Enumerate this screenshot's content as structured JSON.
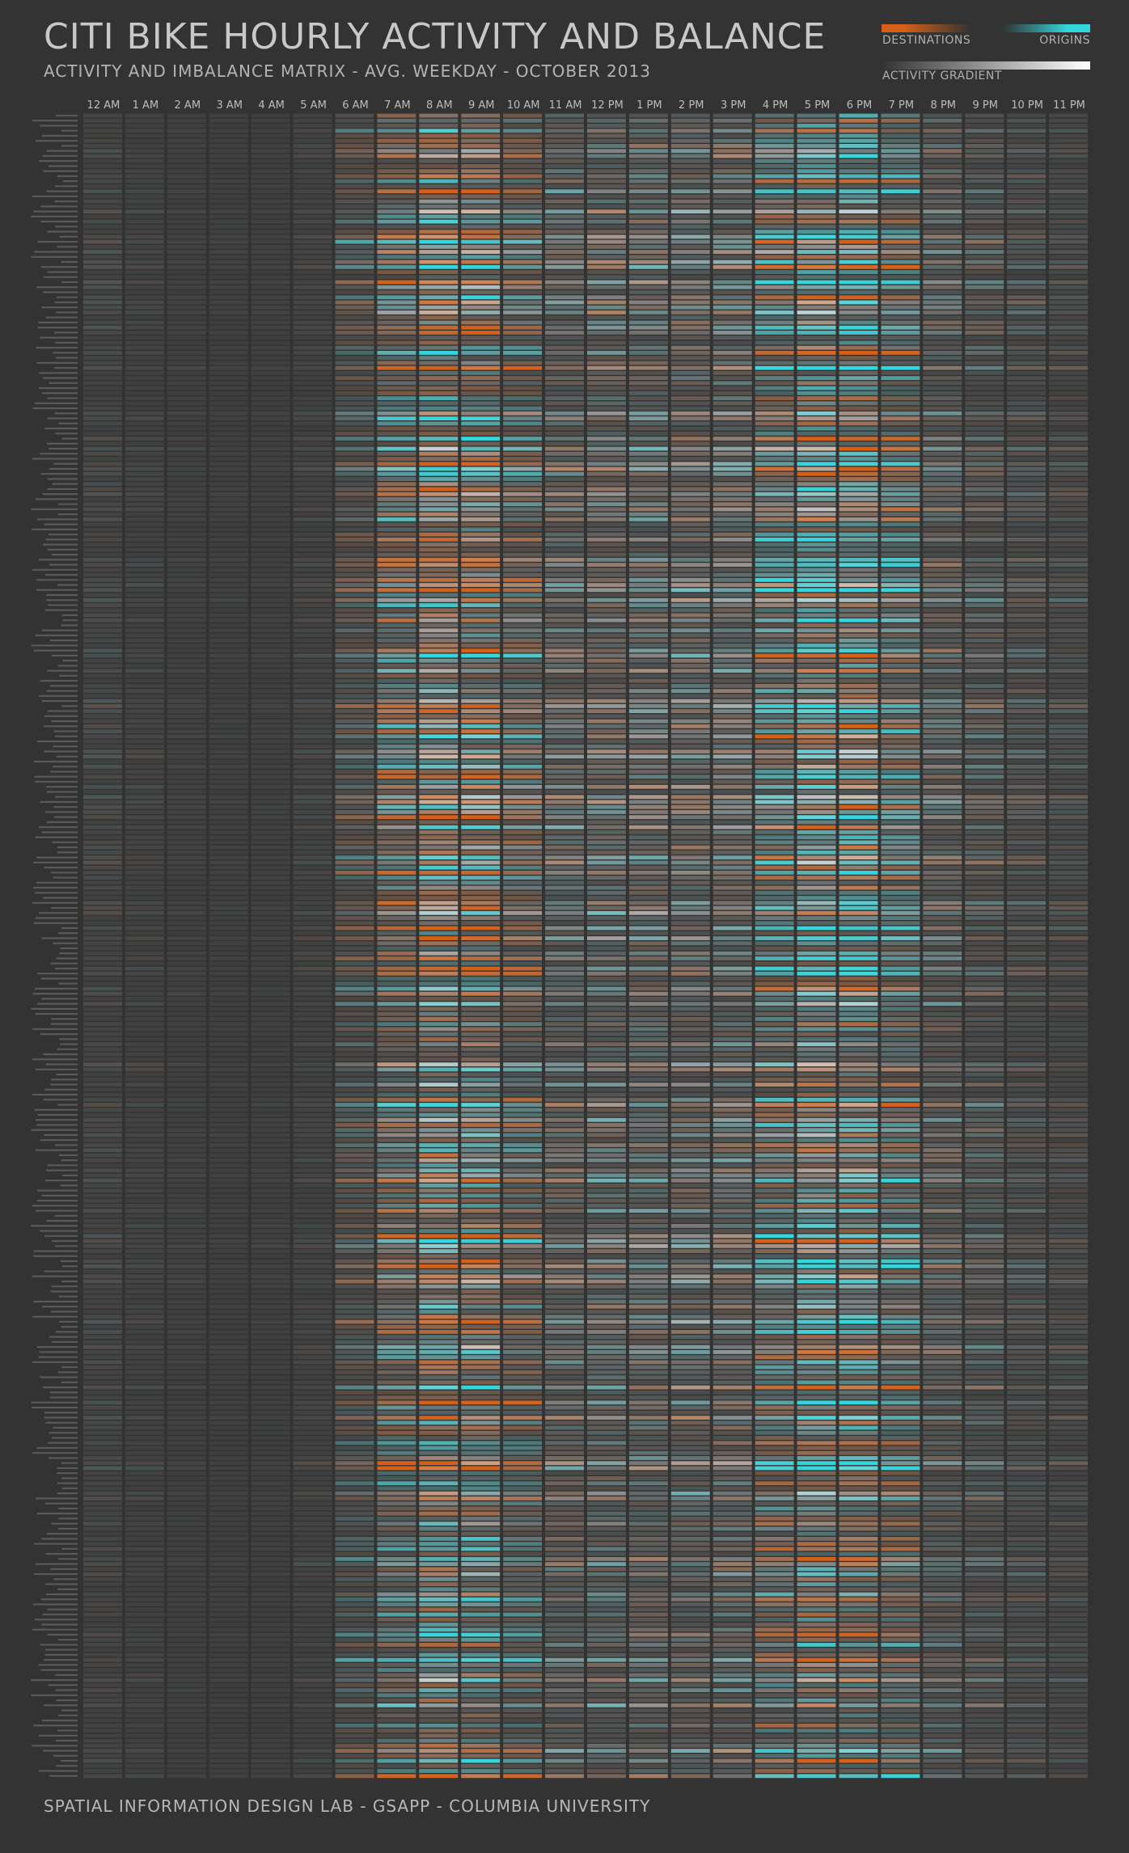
{
  "title": "CITI BIKE HOURLY ACTIVITY AND BALANCE",
  "subtitle": "ACTIVITY AND IMBALANCE MATRIX - AVG. WEEKDAY - OCTOBER 2013",
  "legend": {
    "destinations": "DESTINATIONS",
    "origins": "ORIGINS",
    "activity_gradient": "ACTIVITY GRADIENT"
  },
  "footer": "SPATIAL INFORMATION DESIGN LAB - GSAPP - COLUMBIA UNIVERSITY",
  "colors": {
    "background": "#333333",
    "destinations": "#d4601a",
    "origins": "#33d6dc",
    "activity": "#ffffff",
    "empty_cell": "#3d3d3d"
  },
  "chart_data": {
    "type": "heatmap",
    "x": [
      "12 AM",
      "1 AM",
      "2 AM",
      "3 AM",
      "4 AM",
      "5 AM",
      "6 AM",
      "7 AM",
      "8 AM",
      "9 AM",
      "10 AM",
      "11 AM",
      "12 PM",
      "1 PM",
      "2 PM",
      "3 PM",
      "4 PM",
      "5 PM",
      "6 PM",
      "7 PM",
      "8 PM",
      "9 PM",
      "10 PM",
      "11 PM"
    ],
    "y_count": 330,
    "y_labels_legible": false,
    "encoding": {
      "brightness": "hourly activity (avg. weekday)",
      "hue_orange": "net destinations",
      "hue_cyan": "net origins"
    },
    "hourly_activity_profile_relative": [
      0.1,
      0.06,
      0.04,
      0.03,
      0.03,
      0.07,
      0.25,
      0.55,
      0.9,
      0.8,
      0.48,
      0.47,
      0.5,
      0.52,
      0.52,
      0.55,
      0.65,
      0.9,
      0.85,
      0.55,
      0.4,
      0.3,
      0.22,
      0.16
    ]
  }
}
